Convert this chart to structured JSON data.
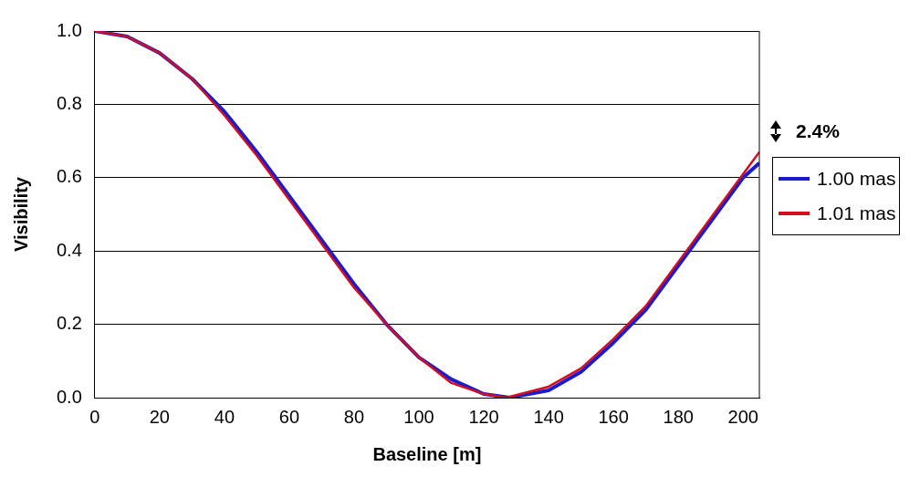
{
  "chart_data": {
    "type": "line",
    "xlabel": "Baseline [m]",
    "ylabel": "Visibility",
    "annotations": [
      "2.4%"
    ],
    "xlim": [
      0,
      205
    ],
    "xticks": [
      0,
      20,
      40,
      60,
      80,
      100,
      120,
      140,
      160,
      180,
      200
    ],
    "ylim": [
      0,
      1
    ],
    "yticks": [
      {
        "value": 0,
        "label": "0.0"
      },
      {
        "value": 0.2,
        "label": "0.2"
      },
      {
        "value": 0.4,
        "label": "0.4"
      },
      {
        "value": 0.6,
        "label": "0.6"
      },
      {
        "value": 0.8,
        "label": "0.8"
      },
      {
        "value": 1,
        "label": "1.0"
      }
    ],
    "grid": "y",
    "legend": "right",
    "marker": "none",
    "line_style": "solid",
    "series": [
      {
        "name": "1.00 mas",
        "color": "#1a1ad0",
        "x": [
          0,
          10,
          20,
          30,
          40,
          50,
          60,
          70,
          80,
          90,
          100,
          110,
          120,
          128,
          140,
          150,
          160,
          170,
          180,
          190,
          200,
          205
        ],
        "values": [
          1,
          0.985,
          0.94,
          0.87,
          0.78,
          0.67,
          0.55,
          0.43,
          0.31,
          0.2,
          0.11,
          0.05,
          0.01,
          0,
          0.02,
          0.07,
          0.15,
          0.24,
          0.36,
          0.48,
          0.6,
          0.64
        ]
      },
      {
        "name": "1.01 mas",
        "color": "#d01020",
        "x": [
          0,
          10,
          20,
          30,
          40,
          50,
          60,
          70,
          80,
          90,
          100,
          110,
          120,
          127,
          140,
          150,
          160,
          170,
          180,
          190,
          200,
          205
        ],
        "values": [
          1,
          0.985,
          0.94,
          0.87,
          0.77,
          0.66,
          0.54,
          0.42,
          0.3,
          0.2,
          0.11,
          0.04,
          0.01,
          0,
          0.03,
          0.08,
          0.16,
          0.25,
          0.37,
          0.49,
          0.61,
          0.67
        ]
      }
    ]
  }
}
